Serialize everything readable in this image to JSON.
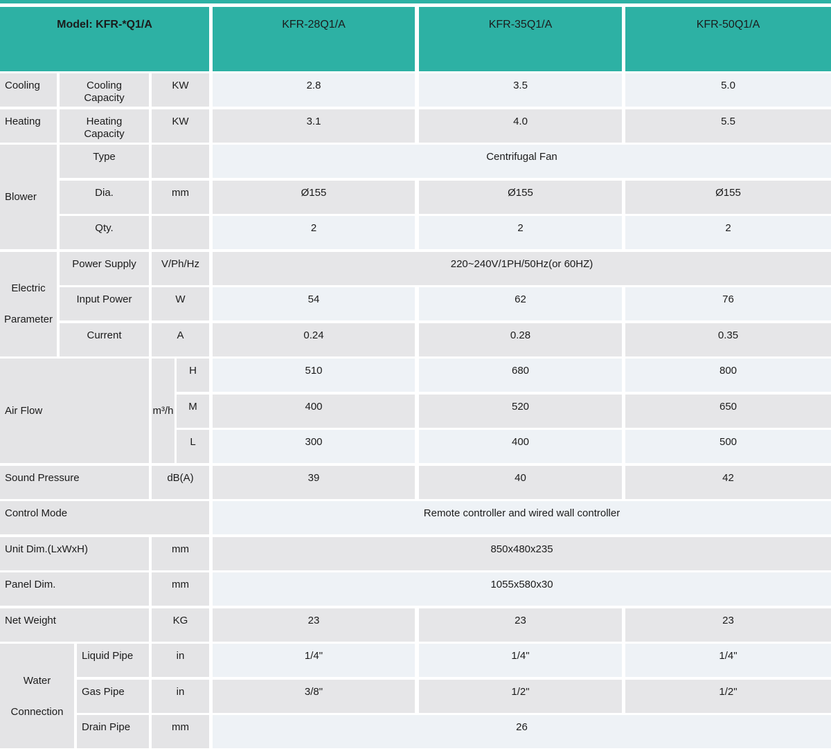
{
  "colors": {
    "header_teal": "#2db1a4",
    "label_cell_bg": "#e4e4e6",
    "data_row_blue_bg": "#eef2f6",
    "data_row_gray_bg": "#e6e6e8"
  },
  "header": {
    "model": "Model: KFR-*Q1/A",
    "models": [
      "KFR-28Q1/A",
      "KFR-35Q1/A",
      "KFR-50Q1/A"
    ]
  },
  "sections": {
    "cooling": {
      "category": "Cooling",
      "label": "Cooling\nCapacity",
      "unit": "KW",
      "values": [
        "2.8",
        "3.5",
        "5.0"
      ]
    },
    "heating": {
      "category": "Heating",
      "label": "Heating\nCapacity",
      "unit": "KW",
      "values": [
        "3.1",
        "4.0",
        "5.5"
      ]
    },
    "blower": {
      "category": "Blower",
      "rows": {
        "type": {
          "label": "Type",
          "unit": "",
          "value": "Centrifugal Fan"
        },
        "dia": {
          "label": "Dia.",
          "unit": "mm",
          "values": [
            "Ø155",
            "Ø155",
            "Ø155"
          ]
        },
        "qty": {
          "label": "Qty.",
          "unit": "",
          "values": [
            "2",
            "2",
            "2"
          ]
        }
      }
    },
    "electric": {
      "category": "Electric\nParameter",
      "rows": {
        "power_supply": {
          "label": "Power Supply",
          "unit": "V/Ph/Hz",
          "value": "220~240V/1PH/50Hz(or 60HZ)"
        },
        "input_power": {
          "label": "Input Power",
          "unit": "W",
          "values": [
            "54",
            "62",
            "76"
          ]
        },
        "current": {
          "label": "Current",
          "unit": "A",
          "values": [
            "0.24",
            "0.28",
            "0.35"
          ]
        }
      }
    },
    "air_flow": {
      "category": "Air Flow",
      "unit": "m³/h",
      "rows": {
        "high": {
          "label": "H",
          "values": [
            "510",
            "680",
            "800"
          ]
        },
        "medium": {
          "label": "M",
          "values": [
            "400",
            "520",
            "650"
          ]
        },
        "low": {
          "label": "L",
          "values": [
            "300",
            "400",
            "500"
          ]
        }
      }
    },
    "sound_pressure": {
      "category": "Sound Pressure",
      "unit": "dB(A)",
      "values": [
        "39",
        "40",
        "42"
      ]
    },
    "control_mode": {
      "category": "Control Mode",
      "value": "Remote controller and wired wall controller"
    },
    "unit_dim": {
      "category": "Unit Dim.(LxWxH)",
      "unit": "mm",
      "value": "850x480x235"
    },
    "panel_dim": {
      "category": "Panel Dim.",
      "unit": "mm",
      "value": "1055x580x30"
    },
    "net_weight": {
      "category": "Net Weight",
      "unit": "KG",
      "values": [
        "23",
        "23",
        "23"
      ]
    },
    "water_connection": {
      "category": "Water\nConnection",
      "rows": {
        "liquid": {
          "label": "Liquid Pipe",
          "unit": "in",
          "values": [
            "1/4\"",
            "1/4\"",
            "1/4\""
          ]
        },
        "gas": {
          "label": "Gas Pipe",
          "unit": "in",
          "values": [
            "3/8\"",
            "1/2\"",
            "1/2\""
          ]
        },
        "drain": {
          "label": "Drain Pipe",
          "unit": "mm",
          "value": "26"
        }
      }
    }
  }
}
